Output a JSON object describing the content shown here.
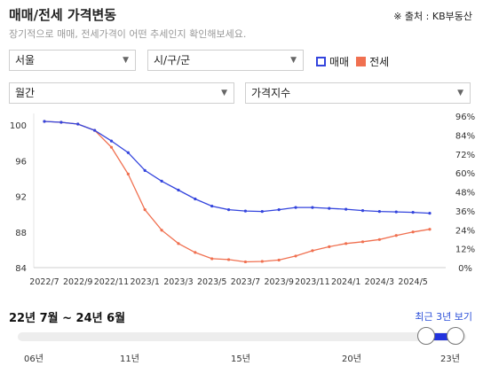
{
  "header": {
    "title": "매매/전세 가격변동",
    "source": "※ 출처 : KB부동산",
    "subtitle": "장기적으로 매매, 전세가격이 어떤 추세인지 확인해보세요."
  },
  "filters": {
    "region": "서울",
    "district": "시/구/군",
    "period_unit": "월간",
    "metric": "가격지수"
  },
  "legend": {
    "sale_label": "매매",
    "jeonse_label": "전세",
    "sale_color": "#3344dd",
    "jeonse_color": "#f07050"
  },
  "chart_data": {
    "type": "line",
    "x_tick_labels": [
      "2022/7",
      "2022/9",
      "2022/11",
      "2023/1",
      "2023/3",
      "2023/5",
      "2023/7",
      "2023/9",
      "2023/11",
      "2024/1",
      "2024/3",
      "2024/5"
    ],
    "left_axis": {
      "ticks": [
        "100",
        "96",
        "92",
        "88",
        "84"
      ],
      "ylim": [
        84,
        100.5
      ]
    },
    "right_axis": {
      "ticks": [
        "96%",
        "84%",
        "72%",
        "60%",
        "48%",
        "36%",
        "24%",
        "12%",
        "0%"
      ]
    },
    "grid": false,
    "series": [
      {
        "name": "매매",
        "color": "#3344dd",
        "values": [
          100.4,
          100.3,
          100.1,
          99.4,
          98.2,
          96.9,
          94.9,
          93.7,
          92.7,
          91.7,
          90.9,
          90.5,
          90.35,
          90.3,
          90.5,
          90.75,
          90.75,
          90.65,
          90.55,
          90.4,
          90.3,
          90.25,
          90.2,
          90.1
        ]
      },
      {
        "name": "전세",
        "color": "#f07050",
        "values": [
          100.4,
          100.3,
          100.1,
          99.4,
          97.5,
          94.5,
          90.5,
          88.2,
          86.7,
          85.7,
          85.0,
          84.9,
          84.65,
          84.7,
          84.85,
          85.3,
          85.9,
          86.35,
          86.7,
          86.9,
          87.15,
          87.6,
          88.0,
          88.3
        ]
      }
    ]
  },
  "range": {
    "period_text": "22년 7월 ~ 24년 6월",
    "recent_button": "최근 3년 보기",
    "year_labels": [
      "06년",
      "11년",
      "15년",
      "20년",
      "23년"
    ]
  }
}
